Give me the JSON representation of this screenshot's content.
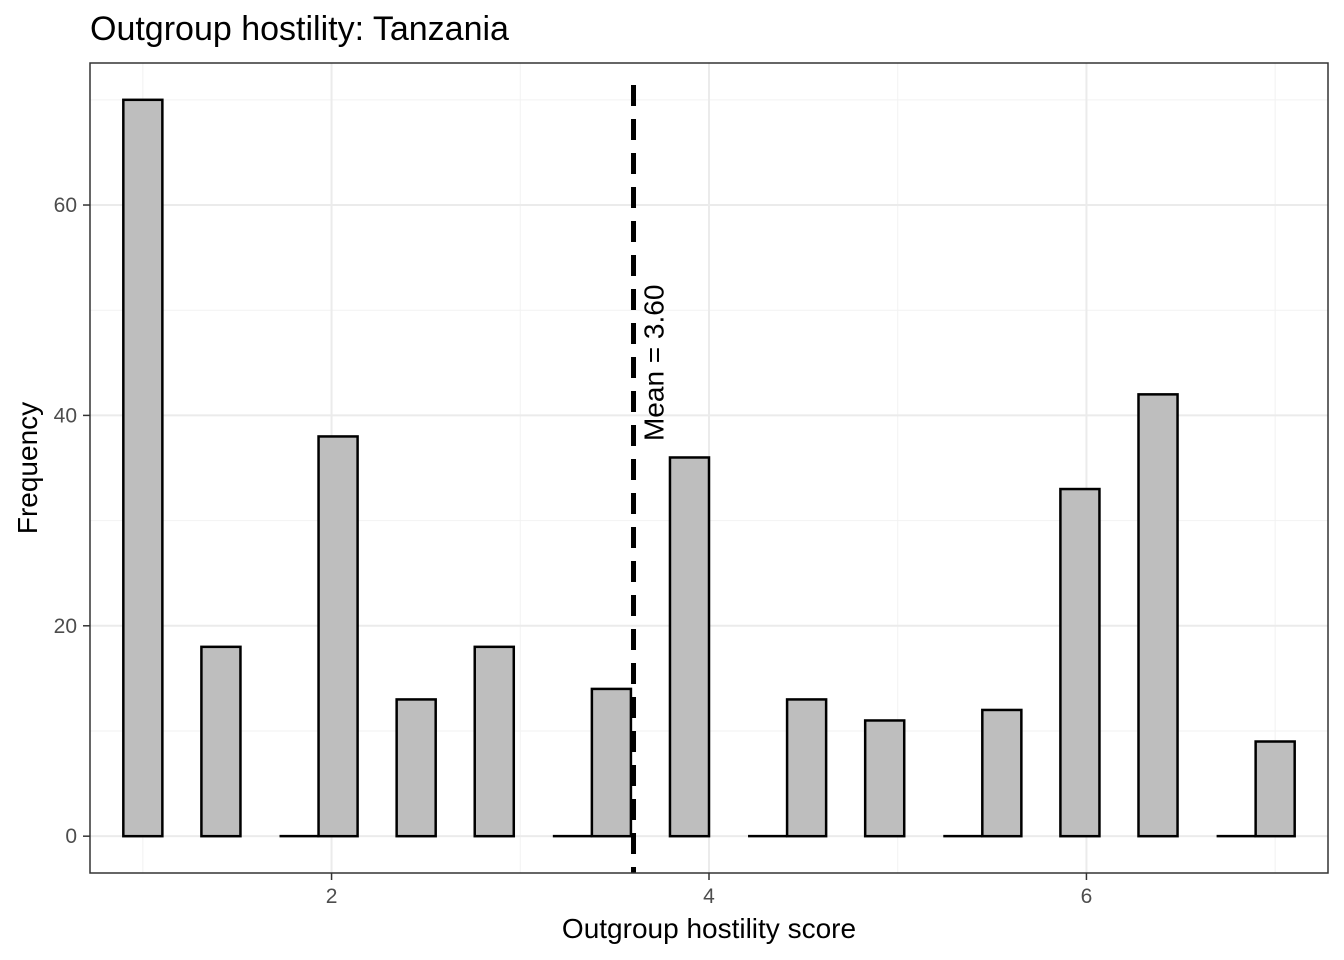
{
  "chart_data": {
    "type": "bar",
    "title": "Outgroup hostility: Tanzania",
    "xlabel": "Outgroup hostility score",
    "ylabel": "Frequency",
    "xlim": [
      0.72,
      7.28
    ],
    "ylim": [
      -3.5,
      73.5
    ],
    "x_ticks": [
      2,
      4,
      6
    ],
    "y_ticks": [
      0,
      20,
      40,
      60
    ],
    "x_minor": [
      1,
      3,
      5,
      7
    ],
    "y_minor": [
      10,
      30,
      50,
      70
    ],
    "bin_width": 0.2069,
    "bins": [
      {
        "x": 1.0,
        "count": 70
      },
      {
        "x": 1.4138,
        "count": 18
      },
      {
        "x": 1.8276,
        "count": 0
      },
      {
        "x": 2.0345,
        "count": 38
      },
      {
        "x": 2.4483,
        "count": 13
      },
      {
        "x": 2.8621,
        "count": 18
      },
      {
        "x": 3.2759,
        "count": 0
      },
      {
        "x": 3.4828,
        "count": 14
      },
      {
        "x": 3.8966,
        "count": 36
      },
      {
        "x": 4.3103,
        "count": 0
      },
      {
        "x": 4.5172,
        "count": 13
      },
      {
        "x": 4.931,
        "count": 11
      },
      {
        "x": 5.3448,
        "count": 0
      },
      {
        "x": 5.5517,
        "count": 12
      },
      {
        "x": 5.9655,
        "count": 33
      },
      {
        "x": 6.3793,
        "count": 42
      },
      {
        "x": 6.7931,
        "count": 0
      },
      {
        "x": 7.0,
        "count": 9
      }
    ],
    "mean": 3.6,
    "mean_label": "Mean = 3.60",
    "grid": true,
    "fill_color": "#bebebe",
    "line_color": "#000000"
  }
}
